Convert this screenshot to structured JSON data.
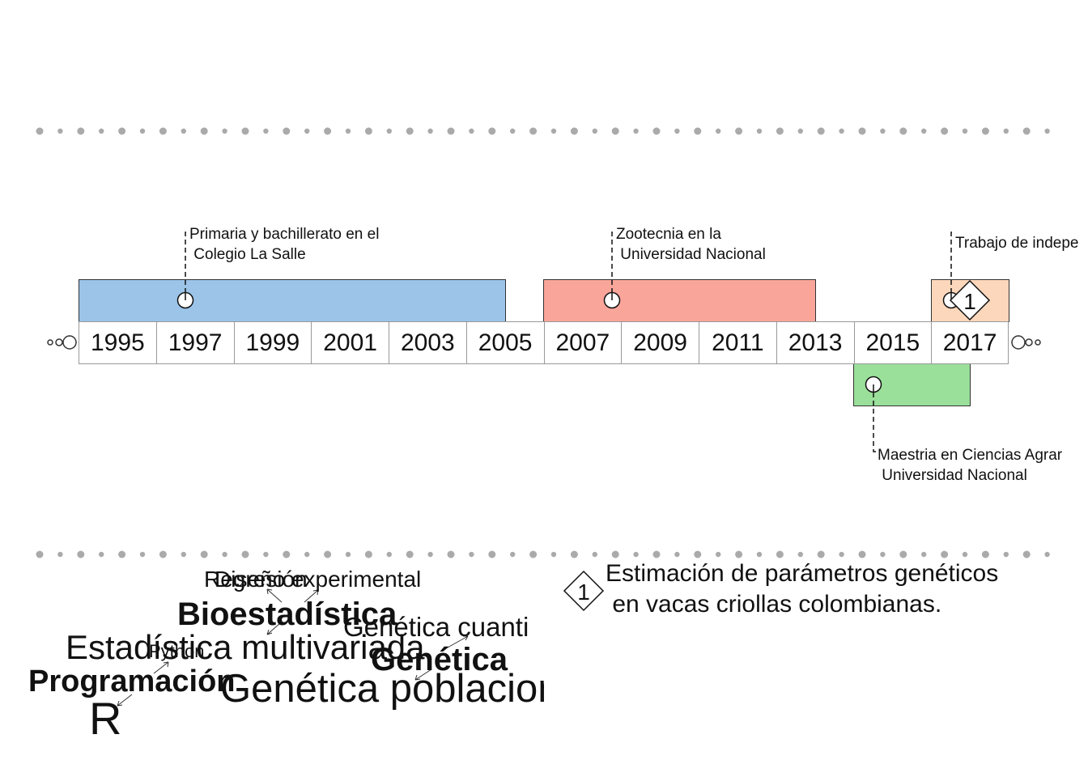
{
  "timeline": {
    "years": [
      "1995",
      "1997",
      "1999",
      "2001",
      "2003",
      "2005",
      "2007",
      "2009",
      "2011",
      "2013",
      "2015",
      "2017"
    ],
    "events": [
      {
        "text": "Primaria y bachillerato en el\n Colegio La Salle",
        "start": 1994,
        "end": 2005,
        "color": "#9bc4e8"
      },
      {
        "text": "Zootecnia en la\n Universidad Nacional",
        "start": 2006,
        "end": 2013,
        "color": "#f9a59a"
      },
      {
        "text": "Trabajo de indepe",
        "start": 2016,
        "end": 2018,
        "color": "#fdd7bb"
      },
      {
        "text": "Maestria en Ciencias Agrar\n Universidad Nacional",
        "start": 2014,
        "end": 2017,
        "color": "#9adf9a"
      }
    ],
    "milestone_label": "1"
  },
  "wordcloud": {
    "words": [
      {
        "text": "Regresión",
        "bold": false
      },
      {
        "text": "Diseño experimental",
        "bold": false
      },
      {
        "text": "Bioestadística",
        "bold": true
      },
      {
        "text": "Genética cuanti",
        "bold": false
      },
      {
        "text": "Estadística multivariada",
        "bold": false
      },
      {
        "text": "Python",
        "bold": false
      },
      {
        "text": "Genética",
        "bold": true
      },
      {
        "text": "Programación",
        "bold": true
      },
      {
        "text": "Genética poblacion",
        "bold": false
      },
      {
        "text": "R",
        "bold": false
      }
    ]
  },
  "legend": {
    "marker": "1",
    "text": "Estimación de parámetros genéticos\n en vacas criollas colombianas."
  },
  "colors": {
    "dots": "#aaaaaa",
    "border": "#333333",
    "year_border": "#999999"
  }
}
